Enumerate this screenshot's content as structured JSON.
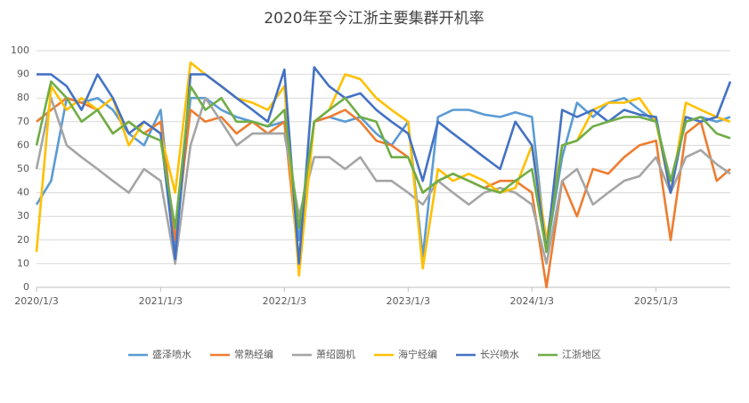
{
  "chart_data": {
    "type": "line",
    "title": "2020年至今江浙主要集群开机率",
    "x": [
      "2020/1/3",
      "2020/2/15",
      "2020/4/1",
      "2020/5/15",
      "2020/7/1",
      "2020/8/15",
      "2020/10/1",
      "2020/11/15",
      "2021/1/3",
      "2021/2/15",
      "2021/4/1",
      "2021/5/15",
      "2021/7/1",
      "2021/8/15",
      "2021/10/1",
      "2021/11/15",
      "2022/1/3",
      "2022/2/15",
      "2022/4/1",
      "2022/5/15",
      "2022/7/1",
      "2022/8/15",
      "2022/10/1",
      "2022/11/15",
      "2023/1/3",
      "2023/2/15",
      "2023/4/1",
      "2023/5/15",
      "2023/7/1",
      "2023/8/15",
      "2023/10/1",
      "2023/11/15",
      "2024/1/3",
      "2024/2/15",
      "2024/4/1",
      "2024/5/15",
      "2024/7/1",
      "2024/8/15",
      "2024/10/1",
      "2024/11/15",
      "2025/1/3",
      "2025/2/15",
      "2025/4/1",
      "2025/5/15",
      "2025/7/1",
      "2025/8/10"
    ],
    "series": [
      {
        "name": "盛泽喷水",
        "color": "#5b9bd5",
        "values": [
          35,
          45,
          80,
          78,
          80,
          75,
          65,
          60,
          75,
          15,
          80,
          80,
          75,
          72,
          70,
          68,
          70,
          20,
          70,
          72,
          70,
          72,
          65,
          60,
          70,
          13,
          72,
          75,
          75,
          73,
          72,
          74,
          72,
          15,
          55,
          78,
          72,
          78,
          80,
          75,
          70,
          45,
          70,
          72,
          70,
          72
        ]
      },
      {
        "name": "常熟经编",
        "color": "#ed7d31",
        "values": [
          70,
          75,
          80,
          78,
          75,
          65,
          70,
          65,
          70,
          20,
          75,
          70,
          72,
          65,
          70,
          65,
          70,
          10,
          70,
          72,
          75,
          70,
          62,
          60,
          55,
          40,
          45,
          48,
          45,
          42,
          45,
          45,
          40,
          0,
          45,
          30,
          50,
          48,
          55,
          60,
          62,
          20,
          65,
          70,
          45,
          50
        ]
      },
      {
        "name": "萧绍圆机",
        "color": "#a5a5a5",
        "values": [
          50,
          80,
          60,
          55,
          50,
          45,
          40,
          50,
          45,
          10,
          60,
          80,
          70,
          60,
          65,
          65,
          65,
          30,
          55,
          55,
          50,
          55,
          45,
          45,
          40,
          35,
          45,
          40,
          35,
          40,
          42,
          40,
          35,
          10,
          45,
          50,
          35,
          40,
          45,
          47,
          55,
          40,
          55,
          58,
          52,
          48
        ]
      },
      {
        "name": "海宁经编",
        "color": "#ffc000",
        "values": [
          15,
          85,
          75,
          80,
          75,
          80,
          60,
          70,
          65,
          40,
          95,
          90,
          85,
          80,
          78,
          75,
          85,
          5,
          70,
          75,
          90,
          88,
          80,
          75,
          70,
          8,
          50,
          45,
          48,
          45,
          40,
          42,
          60,
          20,
          60,
          62,
          75,
          78,
          78,
          80,
          70,
          40,
          78,
          75,
          72,
          70
        ]
      },
      {
        "name": "长兴喷水",
        "color": "#4472c4",
        "values": [
          90,
          90,
          85,
          75,
          90,
          80,
          65,
          70,
          65,
          12,
          90,
          90,
          85,
          80,
          75,
          70,
          92,
          10,
          93,
          85,
          80,
          82,
          75,
          70,
          65,
          45,
          70,
          65,
          60,
          55,
          50,
          70,
          60,
          15,
          75,
          72,
          75,
          70,
          75,
          73,
          72,
          40,
          72,
          70,
          72,
          87
        ]
      },
      {
        "name": "江浙地区",
        "color": "#70ad47",
        "values": [
          60,
          87,
          80,
          70,
          75,
          65,
          70,
          65,
          62,
          25,
          85,
          75,
          80,
          70,
          70,
          68,
          75,
          25,
          70,
          75,
          80,
          72,
          70,
          55,
          55,
          40,
          45,
          48,
          45,
          42,
          40,
          45,
          50,
          15,
          60,
          62,
          68,
          70,
          72,
          72,
          70,
          45,
          70,
          72,
          65,
          63
        ]
      }
    ],
    "xlim": [
      "2020/1/3",
      "2025/8/10"
    ],
    "xticks": [
      "2020/1/3",
      "2021/1/3",
      "2022/1/3",
      "2023/1/3",
      "2024/1/3",
      "2025/1/3"
    ],
    "ylim": [
      0,
      100
    ],
    "yticks": [
      0,
      10,
      20,
      30,
      40,
      50,
      60,
      70,
      80,
      90,
      100
    ],
    "grid": true
  }
}
